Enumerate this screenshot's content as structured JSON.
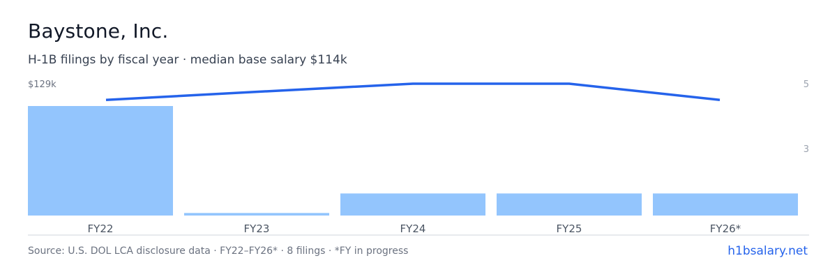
{
  "header": {
    "title": "Baystone, Inc.",
    "subtitle": "H-1B filings by fiscal year · median base salary $114k"
  },
  "footer": {
    "source": "Source: U.S. DOL LCA disclosure data · FY22–FY26* · 8 filings · *FY in progress",
    "link": "h1bsalary.net"
  },
  "colors": {
    "bar": "#93c5fd",
    "line": "#2563eb",
    "axis_text": "#6b7280",
    "right_axis_text": "#9ca3af",
    "baseline": "#d1d5db",
    "link": "#2563eb"
  },
  "chart_data": {
    "type": "bar",
    "categories": [
      "FY22",
      "FY23",
      "FY24",
      "FY25",
      "FY26*"
    ],
    "series": [
      {
        "type": "bar",
        "axis": "left",
        "values": [
          129,
          3,
          26,
          26,
          26
        ]
      },
      {
        "type": "line",
        "axis": "right",
        "values": [
          4.5,
          4.75,
          5,
          5,
          4.5
        ]
      }
    ],
    "left_axis": {
      "label": "$129k",
      "max": 129,
      "unit": "$k"
    },
    "right_axis": {
      "ticks": [
        5,
        3
      ],
      "range": [
        1,
        5
      ]
    },
    "grid": false,
    "legend": "none"
  }
}
